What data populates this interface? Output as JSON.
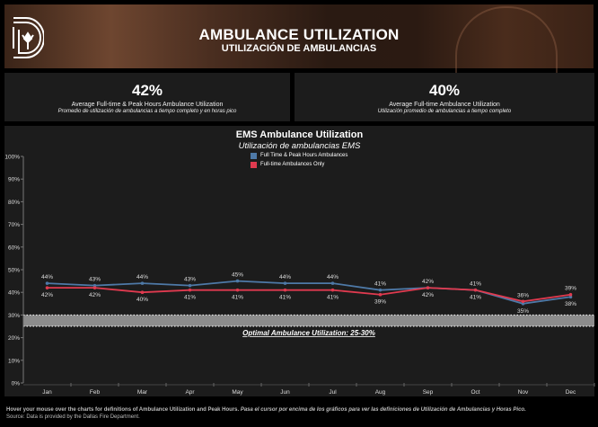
{
  "header": {
    "title": "AMBULANCE UTILIZATION",
    "subtitle": "UTILIZACIÓN DE AMBULANCIAS",
    "logo_icon": "dallas-d-logo-icon"
  },
  "kpis": [
    {
      "value": "42%",
      "label": "Average Full-time & Peak Hours Ambulance Utilization",
      "label_es": "Promedio de utilización de ambulancias a tiempo completo y en horas pico"
    },
    {
      "value": "40%",
      "label": "Average Full-time Ambulance Utilization",
      "label_es": "Utilización promedio de ambulancias a tiempo completo"
    }
  ],
  "chart_data": {
    "type": "line",
    "title": "EMS Ambulance Utilization",
    "subtitle": "Utilización de ambulancias EMS",
    "categories": [
      "Jan",
      "Feb",
      "Mar",
      "Apr",
      "May",
      "Jun",
      "Jul",
      "Aug",
      "Sep",
      "Oct",
      "Nov",
      "Dec"
    ],
    "series": [
      {
        "name": "Full Time & Peak Hours Ambulances",
        "color": "#4e79a7",
        "values": [
          44,
          43,
          44,
          43,
          45,
          44,
          44,
          41,
          42,
          41,
          35,
          38
        ]
      },
      {
        "name": "Full-time Ambulances Only",
        "color": "#e03a4f",
        "values": [
          42,
          42,
          40,
          41,
          41,
          41,
          41,
          39,
          42,
          41,
          36,
          39
        ]
      }
    ],
    "y_ticks": [
      "0%",
      "10%",
      "20%",
      "30%",
      "40%",
      "50%",
      "60%",
      "70%",
      "80%",
      "90%",
      "100%"
    ],
    "ylim": [
      0,
      100
    ],
    "band": {
      "from": 25,
      "to": 30,
      "label": "Optimal Ambulance Utilization: 25-30%",
      "color": "#8c8c8c"
    },
    "legend": "top-center",
    "grid": false
  },
  "footer": {
    "note": "Hover your mouse over the charts for definitions of Ambulance Utilization and Peak Hours.",
    "note_es": "Pasa el cursor por encima de los gráficos para ver las definiciones de Utilización de Ambulancias y Horas Pico.",
    "source": "Source: Data is provided by the Dallas Fire Department."
  }
}
